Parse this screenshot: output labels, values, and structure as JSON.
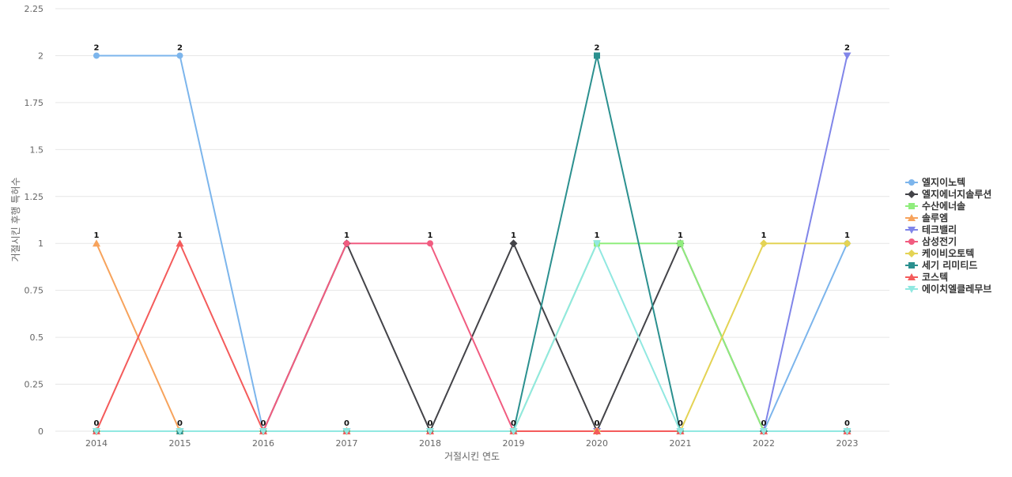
{
  "chart_data": {
    "type": "line",
    "xlabel": "거절시킨 연도",
    "ylabel": "거절시킨 후행 특허수",
    "x": [
      "2014",
      "2015",
      "2016",
      "2017",
      "2018",
      "2019",
      "2020",
      "2021",
      "2022",
      "2023"
    ],
    "ylim": [
      0,
      2.25
    ],
    "yticks": [
      "0",
      "0.25",
      "0.5",
      "0.75",
      "1",
      "1.25",
      "1.5",
      "1.75",
      "2",
      "2.25"
    ],
    "grid": true,
    "legend_position": "right",
    "series": [
      {
        "name": "엘지이노텍",
        "color": "#7cb5ec",
        "marker": "circle",
        "values": [
          2,
          2,
          0,
          0,
          0,
          0,
          0,
          0,
          0,
          1
        ]
      },
      {
        "name": "엘지에너지솔루션",
        "color": "#434348",
        "marker": "diamond",
        "values": [
          0,
          0,
          0,
          1,
          0,
          1,
          0,
          1,
          0,
          0
        ]
      },
      {
        "name": "수산에너솔",
        "color": "#90ed7d",
        "marker": "square",
        "values": [
          0,
          0,
          0,
          0,
          0,
          0,
          1,
          1,
          0,
          0
        ]
      },
      {
        "name": "솔루엠",
        "color": "#f7a35c",
        "marker": "triangle",
        "values": [
          1,
          0,
          0,
          0,
          0,
          0,
          0,
          0,
          0,
          0
        ]
      },
      {
        "name": "테크밸리",
        "color": "#8085e9",
        "marker": "triangle-down",
        "values": [
          0,
          0,
          0,
          0,
          0,
          0,
          0,
          0,
          0,
          2
        ]
      },
      {
        "name": "삼성전기",
        "color": "#f15c80",
        "marker": "circle",
        "values": [
          0,
          0,
          0,
          1,
          1,
          0,
          0,
          0,
          0,
          0
        ]
      },
      {
        "name": "케이비오토텍",
        "color": "#e4d354",
        "marker": "diamond",
        "values": [
          0,
          0,
          0,
          0,
          0,
          0,
          0,
          0,
          1,
          1
        ]
      },
      {
        "name": "세기 리미티드",
        "color": "#2b908f",
        "marker": "square",
        "values": [
          0,
          0,
          0,
          0,
          0,
          0,
          2,
          0,
          0,
          0
        ]
      },
      {
        "name": "코스텍",
        "color": "#f45b5b",
        "marker": "triangle",
        "values": [
          0,
          1,
          0,
          0,
          0,
          0,
          0,
          0,
          0,
          0
        ]
      },
      {
        "name": "에이치엘클레무브",
        "color": "#91e8e1",
        "marker": "triangle-down",
        "values": [
          0,
          0,
          0,
          0,
          0,
          0,
          1,
          0,
          0,
          0
        ]
      }
    ],
    "data_labels": [
      {
        "x": "2014",
        "text": "2",
        "value": 2
      },
      {
        "x": "2015",
        "text": "2",
        "value": 2
      },
      {
        "x": "2020",
        "text": "2",
        "value": 2
      },
      {
        "x": "2023",
        "text": "2",
        "value": 2
      },
      {
        "x": "2014",
        "text": "1",
        "value": 1
      },
      {
        "x": "2015",
        "text": "1",
        "value": 1
      },
      {
        "x": "2017",
        "text": "1",
        "value": 1
      },
      {
        "x": "2018",
        "text": "1",
        "value": 1
      },
      {
        "x": "2019",
        "text": "1",
        "value": 1
      },
      {
        "x": "2020",
        "text": "1",
        "value": 1
      },
      {
        "x": "2021",
        "text": "1",
        "value": 1
      },
      {
        "x": "2022",
        "text": "1",
        "value": 1
      },
      {
        "x": "2023",
        "text": "1",
        "value": 1
      },
      {
        "x": "2014",
        "text": "0",
        "value": 0
      },
      {
        "x": "2015",
        "text": "0",
        "value": 0
      },
      {
        "x": "2016",
        "text": "0",
        "value": 0
      },
      {
        "x": "2017",
        "text": "0",
        "value": 0
      },
      {
        "x": "2018",
        "text": "0",
        "value": 0
      },
      {
        "x": "2019",
        "text": "0",
        "value": 0
      },
      {
        "x": "2020",
        "text": "0",
        "value": 0
      },
      {
        "x": "2021",
        "text": "0",
        "value": 0
      },
      {
        "x": "2022",
        "text": "0",
        "value": 0
      },
      {
        "x": "2023",
        "text": "0",
        "value": 0
      }
    ]
  }
}
